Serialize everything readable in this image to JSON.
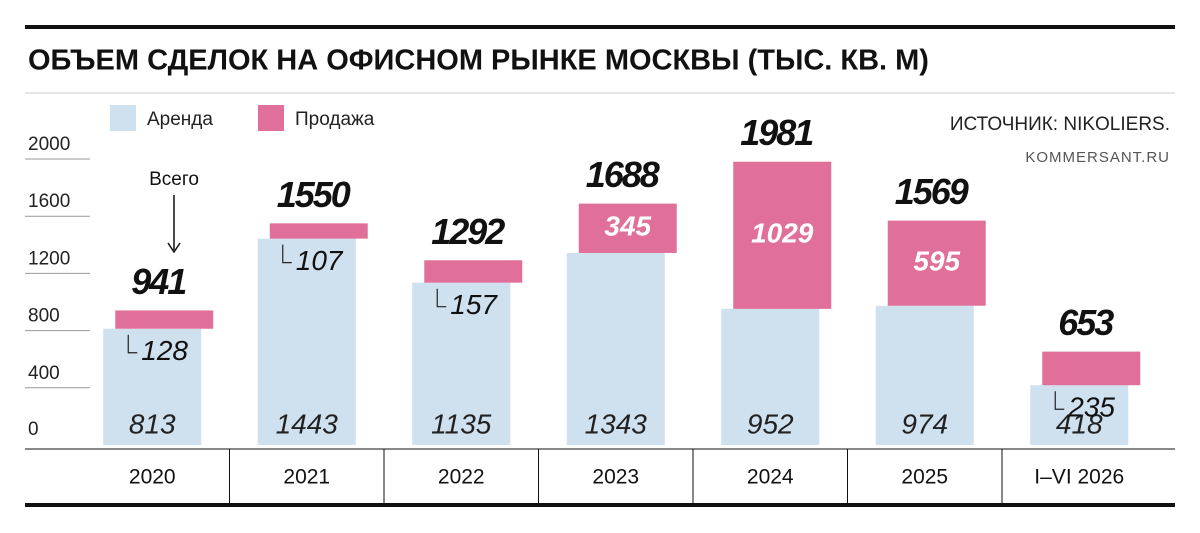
{
  "chart_data": {
    "type": "stacked_bar",
    "title": "ОБЪЕМ СДЕЛОК НА ОФИСНОМ РЫНКЕ МОСКВЫ (ТЫС. КВ. М)",
    "source": "ИСТОЧНИК: NIKOLIERS.",
    "credit": "KOMMERSANT.RU",
    "annotation": "Всего",
    "categories": [
      "2020",
      "2021",
      "2022",
      "2023",
      "2024",
      "2025",
      "I–VI 2026"
    ],
    "series": [
      {
        "name": "Аренда",
        "color": "#cfe0ef",
        "values": [
          813,
          1443,
          1135,
          1343,
          952,
          974,
          418
        ]
      },
      {
        "name": "Продажа",
        "color": "#e0709a",
        "values": [
          128,
          107,
          157,
          345,
          1029,
          595,
          235
        ]
      }
    ],
    "totals": [
      941,
      1550,
      1292,
      1688,
      1981,
      1569,
      653
    ],
    "ylim": [
      0,
      2000
    ],
    "yticks": [
      0,
      400,
      800,
      1200,
      1600,
      2000
    ]
  }
}
